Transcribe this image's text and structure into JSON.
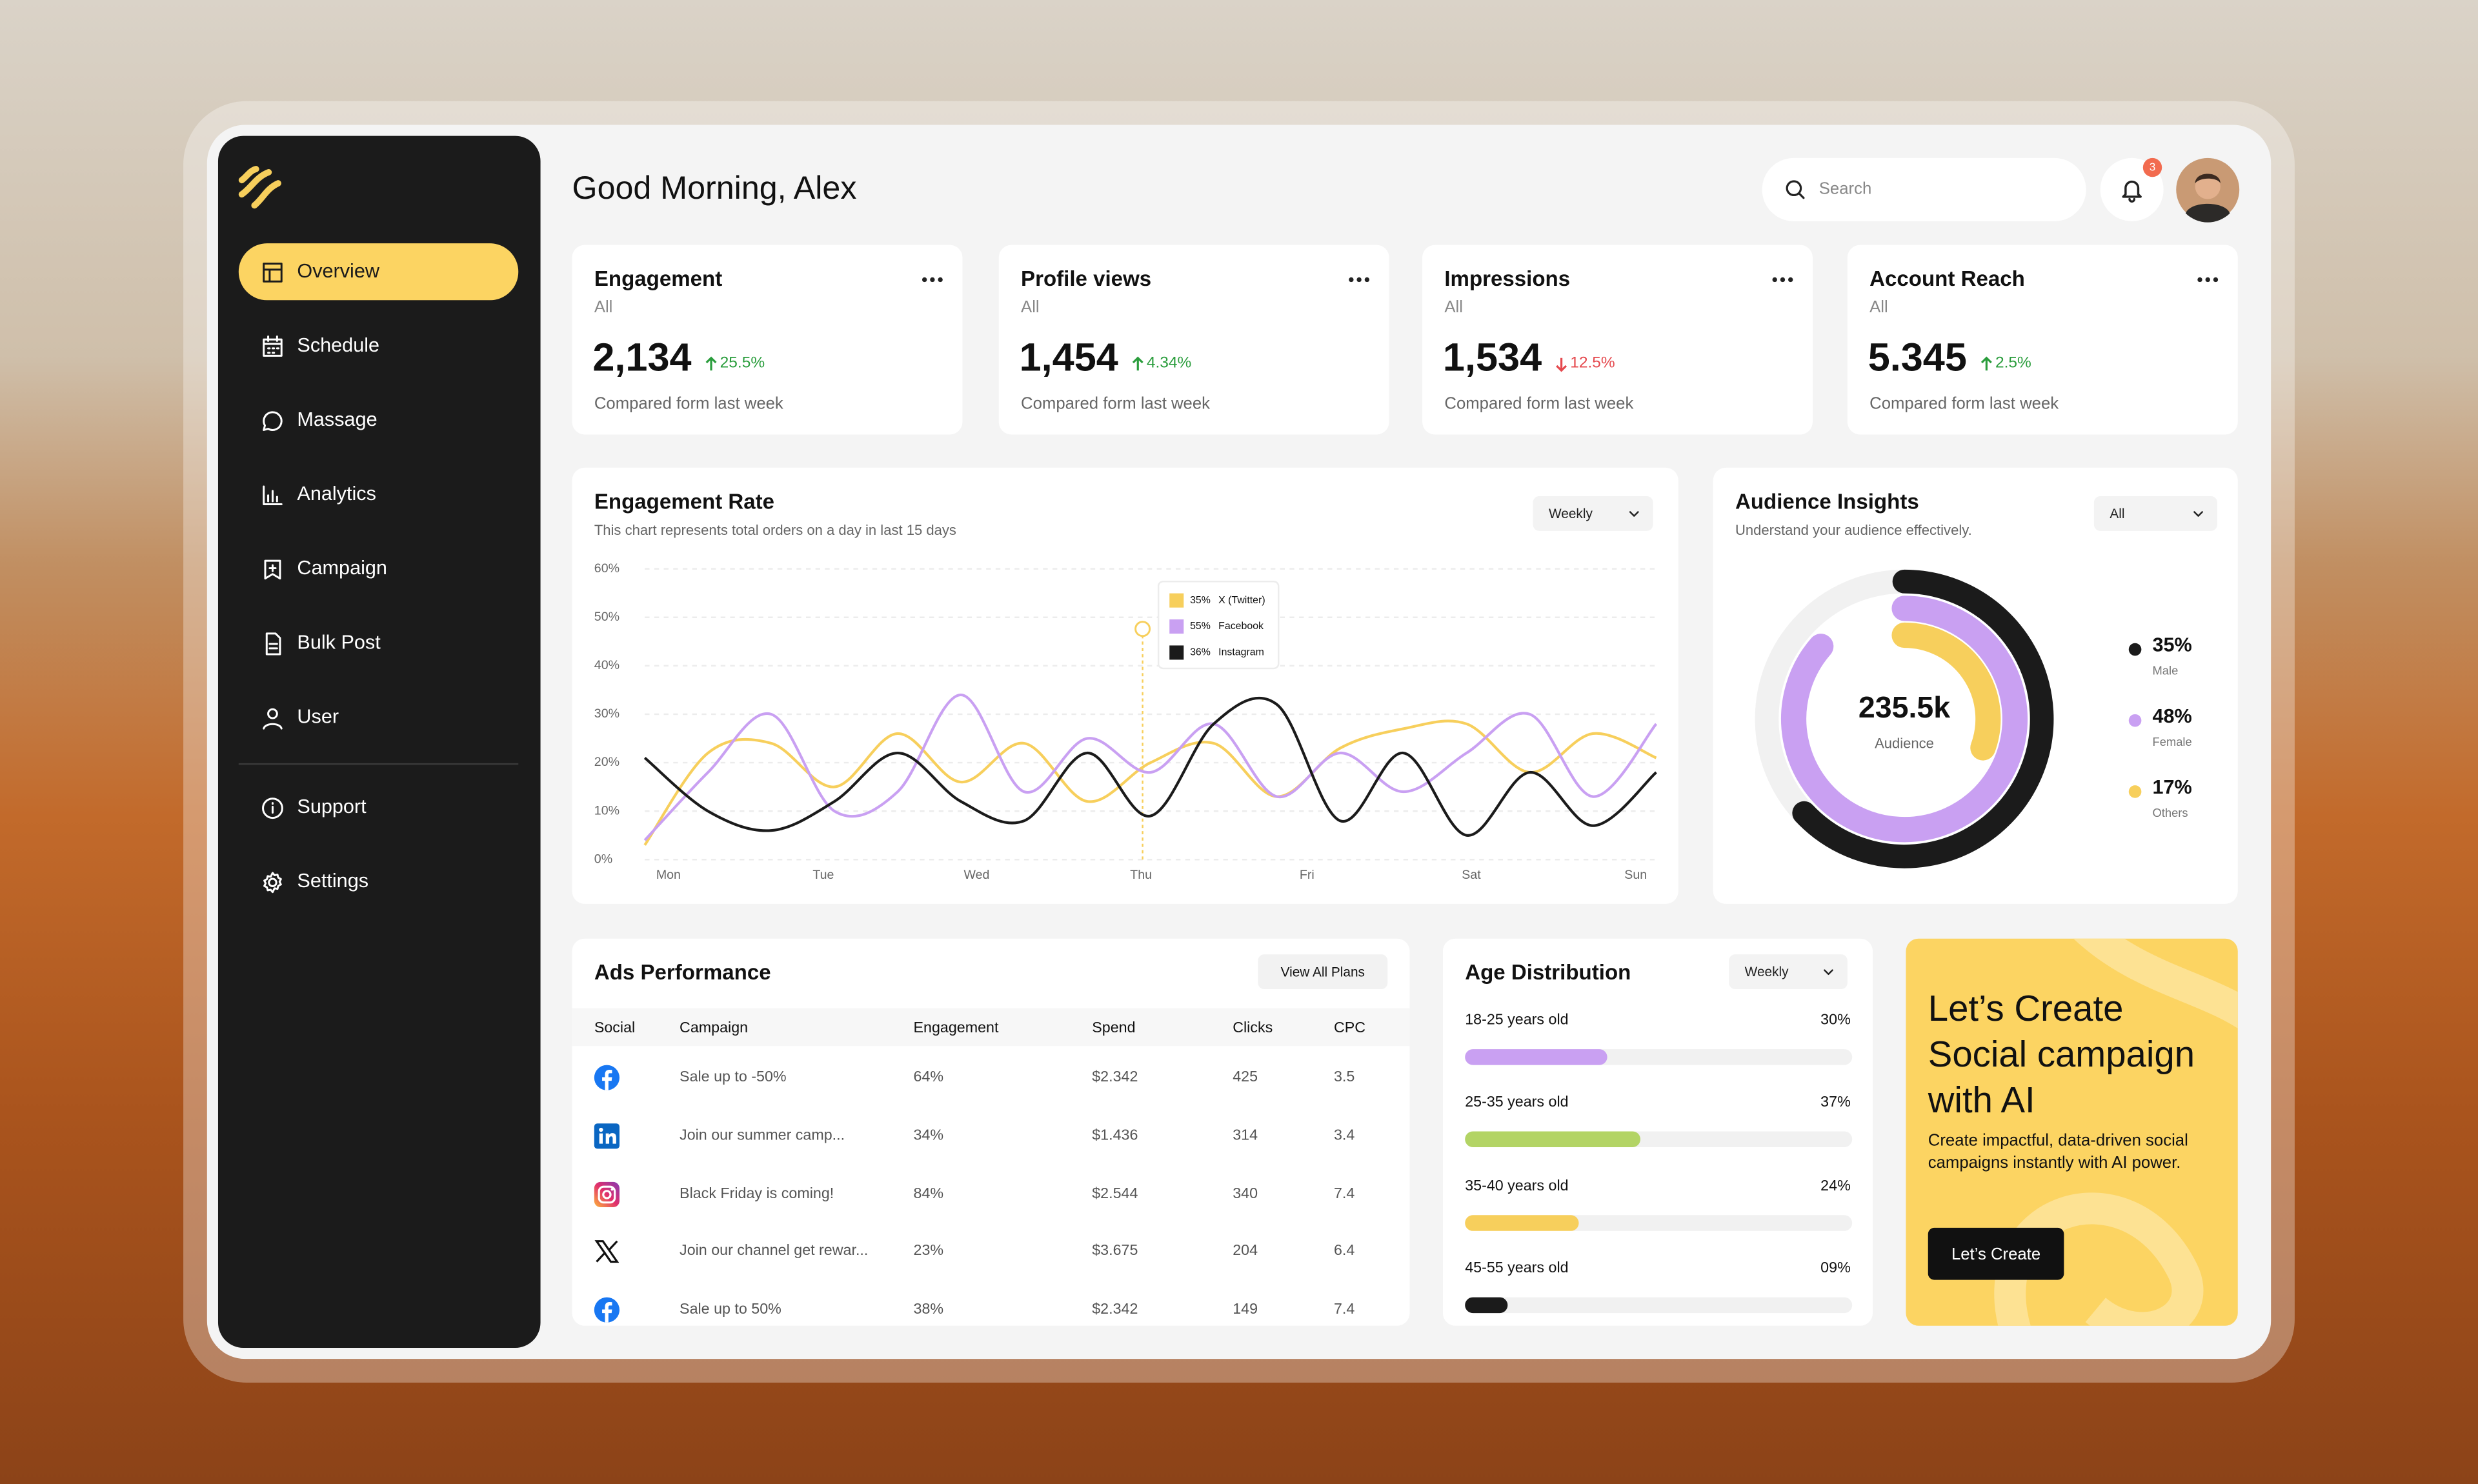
{
  "greeting": "Good Morning, Alex",
  "search_placeholder": "Search",
  "notifications": "3",
  "nav": [
    "Overview",
    "Schedule",
    "Massage",
    "Analytics",
    "Campaign",
    "Bulk Post",
    "User"
  ],
  "nav_bottom": [
    "Support",
    "Settings"
  ],
  "stats": [
    {
      "title": "Engagement",
      "filter": "All",
      "value": "2,134",
      "change": "25.5%",
      "trend": "up",
      "note": "Compared form last week"
    },
    {
      "title": "Profile views",
      "filter": "All",
      "value": "1,454",
      "change": "4.34%",
      "trend": "up",
      "note": "Compared form last week"
    },
    {
      "title": "Impressions",
      "filter": "All",
      "value": "1,534",
      "change": "12.5%",
      "trend": "down",
      "note": "Compared form last week"
    },
    {
      "title": "Account Reach",
      "filter": "All",
      "value": "5.345",
      "change": "2.5%",
      "trend": "up",
      "note": "Compared form last week"
    }
  ],
  "engagement_chart": {
    "type": "line",
    "title": "Engagement Rate",
    "subtitle": "This chart represents total orders on a day in last 15 days",
    "period": "Weekly",
    "x": [
      0,
      4,
      8,
      12,
      16,
      20,
      24,
      28,
      32,
      36,
      40,
      44,
      48,
      52,
      56,
      60,
      64
    ],
    "xlim": [
      0,
      64
    ],
    "xticks": [
      {
        "value": 1.5,
        "label": "Mon"
      },
      {
        "value": 11.3,
        "label": "Tue"
      },
      {
        "value": 21,
        "label": "Wed"
      },
      {
        "value": 31.4,
        "label": "Thu"
      },
      {
        "value": 41.9,
        "label": "Fri"
      },
      {
        "value": 52.3,
        "label": "Sat"
      },
      {
        "value": 62.7,
        "label": "Sun"
      }
    ],
    "ylim": [
      0,
      60
    ],
    "yticks": [
      {
        "value": 0,
        "label": "0%"
      },
      {
        "value": 10,
        "label": "10%"
      },
      {
        "value": 20,
        "label": "20%"
      },
      {
        "value": 30,
        "label": "30%"
      },
      {
        "value": 40,
        "label": "40%"
      },
      {
        "value": 50,
        "label": "50%"
      },
      {
        "value": 60,
        "label": "60%"
      }
    ],
    "grid": true,
    "series": [
      {
        "name": "X (Twitter)",
        "tooltip_value": "35%",
        "color": "#f7cf5c",
        "values": [
          3,
          22,
          24,
          15,
          26,
          16,
          24,
          12,
          20,
          24,
          13,
          23,
          27,
          28,
          18,
          26,
          21
        ]
      },
      {
        "name": "Facebook",
        "tooltip_value": "55%",
        "color": "#c9a0f2",
        "values": [
          4,
          18,
          30,
          10,
          14,
          34,
          14,
          25,
          18,
          28,
          13,
          22,
          14,
          22,
          30,
          13,
          28
        ]
      },
      {
        "name": "Instagram",
        "tooltip_value": "36%",
        "color": "#1b1b1b",
        "values": [
          21,
          10,
          6,
          12,
          22,
          12,
          8,
          22,
          9,
          28,
          32,
          8,
          22,
          5,
          18,
          7,
          18
        ]
      }
    ]
  },
  "audience": {
    "type": "donut",
    "title": "Audience Insights",
    "subtitle": "Understand your audience effectively.",
    "filter": "All",
    "total": "235.5k",
    "total_label": "Audience",
    "categories": [
      "Male",
      "Female",
      "Others"
    ],
    "values": [
      35,
      48,
      17
    ],
    "value_labels": [
      "35%",
      "48%",
      "17%"
    ],
    "colors": [
      "#1b1b1b",
      "#c9a0f2",
      "#f7cf5c"
    ]
  },
  "ads": {
    "title": "Ads Performance",
    "action": "View All Plans",
    "columns": [
      "Social",
      "Campaign",
      "Engagement",
      "Spend",
      "Clicks",
      "CPC"
    ],
    "rows": [
      [
        "Sale up to -50%",
        "64%",
        "$2.342",
        "425",
        "3.5"
      ],
      [
        "Join our summer camp...",
        "34%",
        "$1.436",
        "314",
        "3.4"
      ],
      [
        "Black Friday is coming!",
        "84%",
        "$2.544",
        "340",
        "7.4"
      ],
      [
        "Join our channel get rewar...",
        "23%",
        "$3.675",
        "204",
        "6.4"
      ],
      [
        "Sale up to 50%",
        "38%",
        "$2.342",
        "149",
        "7.4"
      ]
    ]
  },
  "age": {
    "type": "bar",
    "title": "Age Distribution",
    "period": "Weekly",
    "categories": [
      "18-25 years old",
      "25-35 years old",
      "35-40 years old",
      "45-55 years old"
    ],
    "values": [
      30,
      37,
      24,
      9
    ],
    "value_labels": [
      "30%",
      "37%",
      "24%",
      "09%"
    ],
    "colors": [
      "#c9a0f2",
      "#b3d465",
      "#f7cf5c",
      "#1b1b1b"
    ]
  },
  "promo": {
    "title": "Let’s Create Social campaign with AI",
    "text": "Create impactful, data-driven social campaigns instantly with AI power.",
    "button": "Let’s Create"
  }
}
